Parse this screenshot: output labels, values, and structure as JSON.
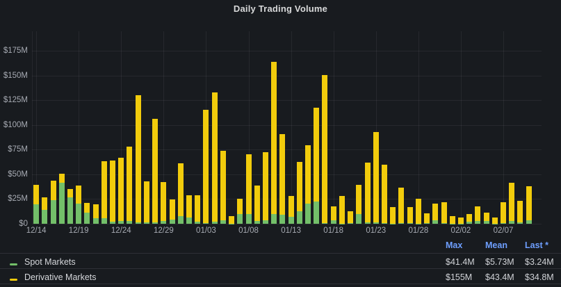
{
  "panel": {
    "title": "Daily Trading Volume",
    "background": "#181b1f"
  },
  "colors": {
    "spot_green": "#73bf69",
    "derivative_yellow": "#f2cc0c",
    "header_blue": "#6e9fff",
    "axis_text": "#a6aab2",
    "grid": "rgba(204,204,220,0.08)"
  },
  "chart_data": {
    "type": "bar",
    "stacked": true,
    "title": "Daily Trading Volume",
    "xlabel": "",
    "ylabel": "",
    "ylim": [
      0,
      194.7
    ],
    "grid": true,
    "legend_position": "bottom-table",
    "categories": [
      "12/14",
      "12/15",
      "12/16",
      "12/17",
      "12/18",
      "12/19",
      "12/20",
      "12/21",
      "12/22",
      "12/23",
      "12/24",
      "12/25",
      "12/26",
      "12/27",
      "12/28",
      "12/29",
      "12/30",
      "12/31",
      "01/01",
      "01/02",
      "01/03",
      "01/04",
      "01/05",
      "01/06",
      "01/07",
      "01/08",
      "01/09",
      "01/10",
      "01/11",
      "01/12",
      "01/13",
      "01/14",
      "01/15",
      "01/16",
      "01/17",
      "01/18",
      "01/19",
      "01/20",
      "01/21",
      "01/22",
      "01/23",
      "01/24",
      "01/25",
      "01/26",
      "01/27",
      "01/28",
      "01/29",
      "01/30",
      "01/31",
      "02/01",
      "02/02",
      "02/03",
      "02/04",
      "02/05",
      "02/06",
      "02/07",
      "02/08",
      "02/09",
      "02/10"
    ],
    "series": [
      {
        "name": "Spot Markets",
        "color": "#73bf69",
        "values": [
          20.0,
          14.3,
          24.0,
          41.4,
          26.7,
          20.1,
          11.2,
          5.6,
          5.6,
          1.9,
          2.6,
          3.0,
          1.4,
          1.4,
          1.2,
          2.6,
          4.4,
          8.0,
          6.1,
          1.9,
          0.9,
          2.1,
          3.3,
          0.3,
          9.6,
          9.6,
          3.0,
          3.7,
          9.6,
          9.1,
          7.3,
          12.6,
          20.1,
          22.5,
          0.7,
          3.7,
          0.2,
          0.7,
          9.6,
          1.2,
          1.4,
          0.7,
          0.2,
          0.7,
          0.5,
          0.2,
          0.5,
          3.5,
          0.7,
          0.2,
          0.2,
          2.1,
          3.0,
          3.0,
          0.3,
          0.5,
          2.6,
          1.6,
          3.2
        ]
      },
      {
        "name": "Derivative Markets",
        "color": "#f2cc0c",
        "values": [
          19.1,
          12.6,
          19.3,
          9.2,
          8.2,
          18.3,
          9.6,
          13.8,
          57.9,
          62.3,
          64.4,
          75.2,
          128.4,
          41.2,
          104.7,
          39.3,
          20.4,
          53.1,
          22.5,
          26.9,
          114.1,
          130.9,
          70.2,
          7.7,
          15.7,
          60.7,
          35.9,
          68.9,
          154.4,
          81.8,
          20.8,
          50.2,
          59.5,
          94.6,
          149.7,
          14.1,
          27.9,
          11.9,
          30.0,
          60.4,
          91.3,
          59.3,
          16.9,
          35.6,
          16.6,
          25.3,
          10.0,
          16.6,
          21.1,
          7.8,
          5.9,
          7.5,
          14.3,
          8.2,
          6.3,
          21.5,
          38.6,
          21.3,
          34.8
        ]
      }
    ],
    "yticks": [
      {
        "v": 0,
        "label": "$0"
      },
      {
        "v": 25,
        "label": "$25M"
      },
      {
        "v": 50,
        "label": "$50M"
      },
      {
        "v": 75,
        "label": "$75M"
      },
      {
        "v": 100,
        "label": "$100M"
      },
      {
        "v": 125,
        "label": "$125M"
      },
      {
        "v": 150,
        "label": "$150M"
      },
      {
        "v": 175,
        "label": "$175M"
      }
    ],
    "xticks": [
      {
        "i": 0,
        "label": "12/14"
      },
      {
        "i": 5,
        "label": "12/19"
      },
      {
        "i": 10,
        "label": "12/24"
      },
      {
        "i": 15,
        "label": "12/29"
      },
      {
        "i": 20,
        "label": "01/03"
      },
      {
        "i": 25,
        "label": "01/08"
      },
      {
        "i": 30,
        "label": "01/13"
      },
      {
        "i": 35,
        "label": "01/18"
      },
      {
        "i": 40,
        "label": "01/23"
      },
      {
        "i": 45,
        "label": "01/28"
      },
      {
        "i": 50,
        "label": "02/02"
      },
      {
        "i": 55,
        "label": "02/07"
      }
    ]
  },
  "legend": {
    "headers": {
      "max": "Max",
      "mean": "Mean",
      "last": "Last *"
    },
    "rows": [
      {
        "label": "Spot Markets",
        "color": "#73bf69",
        "max": "$41.4M",
        "mean": "$5.73M",
        "last": "$3.24M"
      },
      {
        "label": "Derivative Markets",
        "color": "#f2cc0c",
        "max": "$155M",
        "mean": "$43.4M",
        "last": "$34.8M"
      }
    ]
  }
}
